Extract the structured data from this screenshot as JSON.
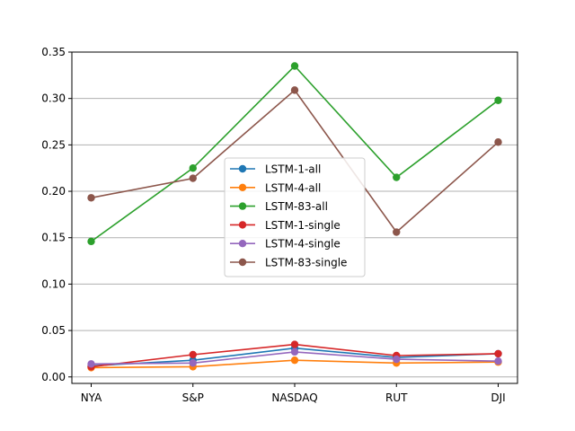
{
  "chart_data": {
    "type": "line",
    "title": "",
    "xlabel": "",
    "ylabel": "",
    "categories": [
      "NYA",
      "S&P",
      "NASDAQ",
      "RUT",
      "DJI"
    ],
    "ylim": [
      -0.007,
      0.35
    ],
    "yticks": [
      "0.00",
      "0.05",
      "0.10",
      "0.15",
      "0.20",
      "0.25",
      "0.30",
      "0.35"
    ],
    "grid": "horizontal",
    "legend_position": "center",
    "series": [
      {
        "name": "LSTM-1-all",
        "color": "#1f77b4",
        "values": [
          0.012,
          0.018,
          0.031,
          0.021,
          0.025
        ]
      },
      {
        "name": "LSTM-4-all",
        "color": "#ff7f0e",
        "values": [
          0.01,
          0.011,
          0.018,
          0.015,
          0.016
        ]
      },
      {
        "name": "LSTM-83-all",
        "color": "#2ca02c",
        "values": [
          0.146,
          0.225,
          0.335,
          0.215,
          0.298
        ]
      },
      {
        "name": "LSTM-1-single",
        "color": "#d62728",
        "values": [
          0.011,
          0.024,
          0.035,
          0.023,
          0.025
        ]
      },
      {
        "name": "LSTM-4-single",
        "color": "#9467bd",
        "values": [
          0.014,
          0.015,
          0.027,
          0.019,
          0.017
        ]
      },
      {
        "name": "LSTM-83-single",
        "color": "#8c564b",
        "values": [
          0.193,
          0.214,
          0.309,
          0.156,
          0.253
        ]
      }
    ]
  }
}
